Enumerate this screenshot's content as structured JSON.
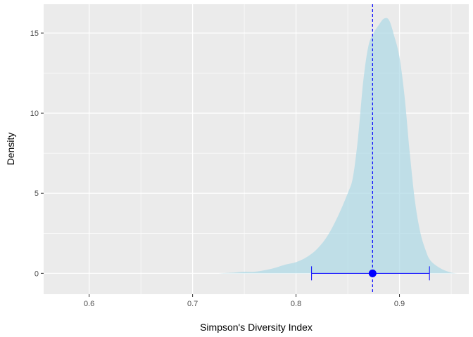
{
  "chart_data": {
    "type": "area",
    "title": "",
    "xlabel": "Simpson's Diversity Index",
    "ylabel": "Density",
    "xlim": [
      0.556,
      0.967
    ],
    "ylim": [
      -1.3,
      16.8
    ],
    "x_ticks": [
      0.6,
      0.7,
      0.8,
      0.9
    ],
    "x_tick_labels": [
      "0.6",
      "0.7",
      "0.8",
      "0.9"
    ],
    "y_ticks": [
      0,
      5,
      10,
      15
    ],
    "y_tick_labels": [
      "0",
      "5",
      "10",
      "15"
    ],
    "grid": true,
    "legend": "none",
    "density": {
      "x": [
        0.725,
        0.74,
        0.75,
        0.76,
        0.77,
        0.78,
        0.79,
        0.8,
        0.81,
        0.82,
        0.83,
        0.84,
        0.85,
        0.855,
        0.86,
        0.865,
        0.87,
        0.875,
        0.88,
        0.885,
        0.89,
        0.895,
        0.9,
        0.905,
        0.91,
        0.915,
        0.92,
        0.925,
        0.93,
        0.94,
        0.95,
        0.956
      ],
      "y": [
        0.0,
        0.05,
        0.1,
        0.1,
        0.2,
        0.35,
        0.55,
        0.7,
        1.0,
        1.5,
        2.3,
        3.5,
        5.0,
        6.0,
        8.5,
        12.0,
        14.2,
        15.0,
        15.5,
        15.9,
        15.8,
        14.8,
        13.5,
        11.0,
        7.5,
        4.5,
        2.6,
        1.5,
        0.8,
        0.3,
        0.05,
        0.0
      ],
      "fill": "#add8e6",
      "opacity": 0.7
    },
    "point": {
      "x": 0.874,
      "y": 0,
      "color": "#0000ff"
    },
    "interval": {
      "low": 0.815,
      "high": 0.929,
      "y": 0,
      "color": "#0000ff"
    },
    "vline": {
      "x": 0.874,
      "style": "dashed",
      "color": "#0000ff"
    }
  }
}
